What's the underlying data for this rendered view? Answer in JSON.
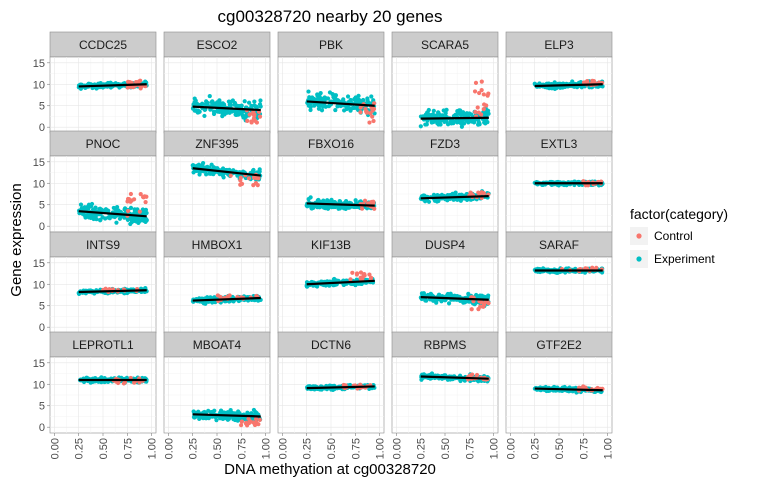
{
  "chart_data": {
    "type": "scatter",
    "title": "cg00328720 nearby 20 genes",
    "xlabel": "DNA methyation at cg00328720",
    "ylabel": "Gene expression",
    "xlim": [
      0,
      1
    ],
    "ylim": [
      0,
      15
    ],
    "x_ticks": [
      "0.00",
      "0.25",
      "0.50",
      "0.75",
      "1.00"
    ],
    "y_ticks": [
      "0",
      "5",
      "10",
      "15"
    ],
    "legend": {
      "title": "factor(category)",
      "position": "right",
      "entries": [
        {
          "label": "Control",
          "color": "#f8766d"
        },
        {
          "label": "Experiment",
          "color": "#00bfc4"
        }
      ]
    },
    "grid": true,
    "background": "#ffffff",
    "panels": [
      {
        "gene": "CCDC25",
        "trend": [
          [
            0.25,
            9.5
          ],
          [
            0.95,
            10.0
          ]
        ],
        "spread": 0.6,
        "ctrl_x": [
          0.75,
          0.95
        ],
        "ctrl_y": [
          9,
          11
        ]
      },
      {
        "gene": "ESCO2",
        "trend": [
          [
            0.25,
            4.8
          ],
          [
            0.95,
            4.0
          ]
        ],
        "spread": 2.0,
        "ctrl_x": [
          0.8,
          0.95
        ],
        "ctrl_y": [
          1,
          4
        ]
      },
      {
        "gene": "PBK",
        "trend": [
          [
            0.25,
            6.0
          ],
          [
            0.95,
            5.0
          ]
        ],
        "spread": 2.2,
        "ctrl_x": [
          0.8,
          0.95
        ],
        "ctrl_y": [
          1,
          6
        ]
      },
      {
        "gene": "SCARA5",
        "trend": [
          [
            0.25,
            2.0
          ],
          [
            0.95,
            2.2
          ]
        ],
        "spread": 2.0,
        "ctrl_x": [
          0.8,
          0.95
        ],
        "ctrl_y": [
          2,
          11
        ]
      },
      {
        "gene": "ELP3",
        "trend": [
          [
            0.25,
            9.6
          ],
          [
            0.95,
            10.0
          ]
        ],
        "spread": 0.7,
        "ctrl_x": [
          0.75,
          0.95
        ],
        "ctrl_y": [
          9.5,
          11
        ]
      },
      {
        "gene": "PNOC",
        "trend": [
          [
            0.25,
            3.5
          ],
          [
            0.95,
            2.3
          ]
        ],
        "spread": 2.2,
        "ctrl_x": [
          0.75,
          0.95
        ],
        "ctrl_y": [
          2,
          8
        ]
      },
      {
        "gene": "ZNF395",
        "trend": [
          [
            0.25,
            13.5
          ],
          [
            0.95,
            11.8
          ]
        ],
        "spread": 1.2,
        "ctrl_x": [
          0.6,
          0.95
        ],
        "ctrl_y": [
          9.5,
          12
        ]
      },
      {
        "gene": "FBXO16",
        "trend": [
          [
            0.25,
            5.3
          ],
          [
            0.95,
            4.8
          ]
        ],
        "spread": 1.1,
        "ctrl_x": [
          0.8,
          0.95
        ],
        "ctrl_y": [
          4,
          6
        ]
      },
      {
        "gene": "FZD3",
        "trend": [
          [
            0.25,
            6.5
          ],
          [
            0.95,
            7.0
          ]
        ],
        "spread": 0.9,
        "ctrl_x": [
          0.75,
          0.95
        ],
        "ctrl_y": [
          6.5,
          8
        ]
      },
      {
        "gene": "EXTL3",
        "trend": [
          [
            0.25,
            10.0
          ],
          [
            0.95,
            10.0
          ]
        ],
        "spread": 0.5,
        "ctrl_x": [
          0.75,
          0.95
        ],
        "ctrl_y": [
          9.5,
          10.5
        ]
      },
      {
        "gene": "INTS9",
        "trend": [
          [
            0.25,
            8.2
          ],
          [
            0.95,
            8.6
          ]
        ],
        "spread": 0.5,
        "ctrl_x": [
          0.5,
          0.95
        ],
        "ctrl_y": [
          8,
          9
        ]
      },
      {
        "gene": "HMBOX1",
        "trend": [
          [
            0.25,
            6.2
          ],
          [
            0.95,
            6.8
          ]
        ],
        "spread": 0.7,
        "ctrl_x": [
          0.5,
          0.95
        ],
        "ctrl_y": [
          6,
          7.5
        ]
      },
      {
        "gene": "KIF13B",
        "trend": [
          [
            0.25,
            10.0
          ],
          [
            0.95,
            10.8
          ]
        ],
        "spread": 0.7,
        "ctrl_x": [
          0.7,
          0.95
        ],
        "ctrl_y": [
          11,
          13
        ]
      },
      {
        "gene": "DUSP4",
        "trend": [
          [
            0.25,
            7.0
          ],
          [
            0.95,
            6.4
          ]
        ],
        "spread": 1.1,
        "ctrl_x": [
          0.75,
          0.95
        ],
        "ctrl_y": [
          4,
          7
        ]
      },
      {
        "gene": "SARAF",
        "trend": [
          [
            0.25,
            13.2
          ],
          [
            0.95,
            13.2
          ]
        ],
        "spread": 0.5,
        "ctrl_x": [
          0.5,
          0.95
        ],
        "ctrl_y": [
          13,
          14
        ]
      },
      {
        "gene": "LEPROTL1",
        "trend": [
          [
            0.25,
            11.0
          ],
          [
            0.95,
            11.0
          ]
        ],
        "spread": 0.6,
        "ctrl_x": [
          0.6,
          0.95
        ],
        "ctrl_y": [
          10,
          11.5
        ]
      },
      {
        "gene": "MBOAT4",
        "trend": [
          [
            0.25,
            3.0
          ],
          [
            0.95,
            2.5
          ]
        ],
        "spread": 1.3,
        "ctrl_x": [
          0.7,
          0.95
        ],
        "ctrl_y": [
          0.3,
          2
        ]
      },
      {
        "gene": "DCTN6",
        "trend": [
          [
            0.25,
            9.1
          ],
          [
            0.95,
            9.5
          ]
        ],
        "spread": 0.5,
        "ctrl_x": [
          0.6,
          0.95
        ],
        "ctrl_y": [
          9,
          10
        ]
      },
      {
        "gene": "RBPMS",
        "trend": [
          [
            0.25,
            11.8
          ],
          [
            0.95,
            11.3
          ]
        ],
        "spread": 0.7,
        "ctrl_x": [
          0.7,
          0.95
        ],
        "ctrl_y": [
          11,
          12.5
        ]
      },
      {
        "gene": "GTF2E2",
        "trend": [
          [
            0.25,
            9.0
          ],
          [
            0.95,
            8.6
          ]
        ],
        "spread": 0.5,
        "ctrl_x": [
          0.7,
          0.95
        ],
        "ctrl_y": [
          8.5,
          9.5
        ]
      }
    ]
  }
}
